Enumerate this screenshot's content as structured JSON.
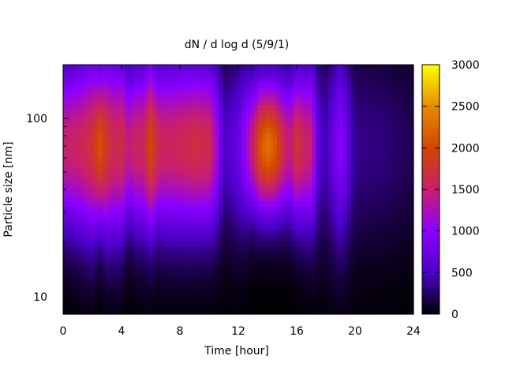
{
  "chart_data": {
    "type": "heatmap",
    "title": "dN / d log d (5/9/1)",
    "xlabel": "Time [hour]",
    "ylabel": "Particle size [nm]",
    "xlim": [
      0,
      24
    ],
    "x_ticks": [
      0,
      4,
      8,
      12,
      16,
      20,
      24
    ],
    "x_tick_labels": [
      "0",
      "4",
      "8",
      "12",
      "16",
      "20",
      "24"
    ],
    "ylim": [
      8,
      200
    ],
    "y_scale": "log",
    "y_tick_labels": [
      {
        "value": 10,
        "label": "10"
      },
      {
        "value": 100,
        "label": "100"
      }
    ],
    "colorbar": {
      "range": [
        0,
        3000
      ],
      "ticks": [
        0,
        500,
        1000,
        1500,
        2000,
        2500,
        3000
      ],
      "tick_labels": [
        "0",
        "500",
        "1000",
        "1500",
        "2000",
        "2500",
        "3000"
      ],
      "colormap": [
        "#000000",
        "#4b00c8",
        "#8c00ff",
        "#c81e6e",
        "#d24600",
        "#e68c00",
        "#ffff00"
      ]
    },
    "peak_size_nm": 70,
    "intensity_profile": {
      "hour": [
        0,
        1,
        2,
        2.5,
        3,
        3.5,
        4,
        4.5,
        5,
        5.5,
        6,
        6.5,
        7,
        8,
        9,
        10,
        10.5,
        11,
        12,
        13,
        13.5,
        14,
        14.5,
        15,
        15.5,
        16,
        16.5,
        17,
        17.5,
        18,
        19,
        20,
        22,
        24
      ],
      "value": [
        1500,
        1550,
        1750,
        2100,
        1800,
        1600,
        1700,
        1400,
        1600,
        1550,
        2000,
        1650,
        1550,
        1600,
        1700,
        1650,
        1200,
        500,
        700,
        1500,
        2100,
        2300,
        2150,
        1700,
        1400,
        1800,
        1550,
        1500,
        600,
        450,
        1000,
        350,
        300,
        200
      ]
    },
    "profile_width": {
      "hour": [
        0,
        2,
        2.5,
        3,
        4,
        4.5,
        5,
        6,
        6.5,
        7,
        8,
        10,
        11,
        12,
        13,
        14,
        15,
        16,
        17,
        18,
        20,
        24
      ],
      "sigma": [
        0.32,
        0.36,
        0.3,
        0.36,
        0.36,
        0.3,
        0.33,
        0.34,
        0.32,
        0.34,
        0.34,
        0.33,
        0.35,
        0.36,
        0.27,
        0.26,
        0.27,
        0.3,
        0.33,
        0.4,
        0.4,
        0.4
      ]
    }
  }
}
